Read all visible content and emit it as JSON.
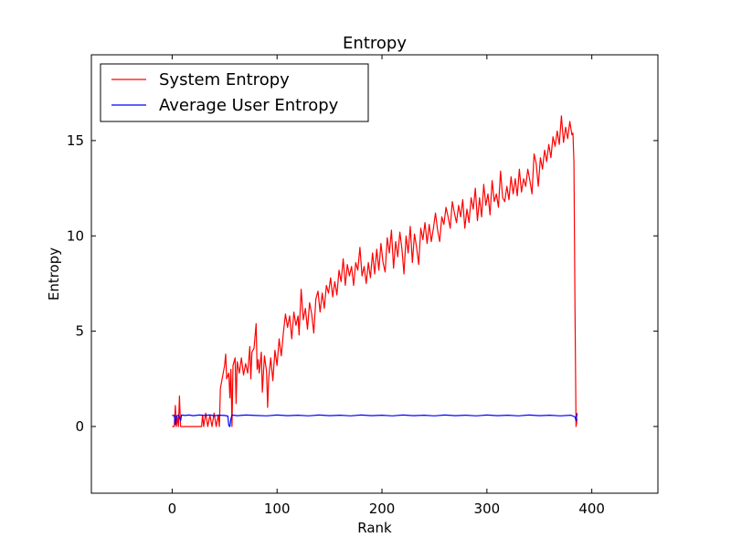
{
  "chart_data": {
    "type": "line",
    "title": "Entropy",
    "xlabel": "Rank",
    "ylabel": "Entropy",
    "xlim": [
      -77,
      463
    ],
    "ylim": [
      -3.5,
      19.5
    ],
    "xticks": [
      0,
      100,
      200,
      300,
      400
    ],
    "yticks": [
      0,
      5,
      10,
      15
    ],
    "grid": false,
    "legend_position": "top-left",
    "series": [
      {
        "name": "System Entropy",
        "color": "#ff0000",
        "points": [
          [
            0,
            0
          ],
          [
            2,
            0
          ],
          [
            3,
            1.1
          ],
          [
            4,
            0
          ],
          [
            5,
            0.5
          ],
          [
            6,
            0
          ],
          [
            7,
            1.6
          ],
          [
            8,
            0
          ],
          [
            10,
            0
          ],
          [
            14,
            0
          ],
          [
            20,
            0
          ],
          [
            25,
            0
          ],
          [
            28,
            0
          ],
          [
            29,
            0.6
          ],
          [
            30,
            0
          ],
          [
            32,
            0.7
          ],
          [
            34,
            0
          ],
          [
            36,
            0.6
          ],
          [
            38,
            0
          ],
          [
            40,
            0.7
          ],
          [
            42,
            0
          ],
          [
            44,
            0.6
          ],
          [
            45,
            0
          ],
          [
            46,
            2.0
          ],
          [
            48,
            2.6
          ],
          [
            50,
            3.2
          ],
          [
            51,
            3.8
          ],
          [
            52,
            2.5
          ],
          [
            54,
            2.8
          ],
          [
            55,
            1.5
          ],
          [
            56,
            3.0
          ],
          [
            57,
            0
          ],
          [
            58,
            3.2
          ],
          [
            60,
            3.6
          ],
          [
            61,
            1.2
          ],
          [
            62,
            3.4
          ],
          [
            64,
            2.8
          ],
          [
            66,
            3.6
          ],
          [
            68,
            2.7
          ],
          [
            70,
            3.3
          ],
          [
            72,
            2.8
          ],
          [
            74,
            4.2
          ],
          [
            75,
            2.5
          ],
          [
            76,
            3.9
          ],
          [
            78,
            4.1
          ],
          [
            80,
            5.4
          ],
          [
            81,
            3.0
          ],
          [
            82,
            3.5
          ],
          [
            83,
            2.8
          ],
          [
            85,
            3.9
          ],
          [
            86,
            1.8
          ],
          [
            88,
            3.7
          ],
          [
            90,
            2.9
          ],
          [
            91,
            1.0
          ],
          [
            92,
            2.5
          ],
          [
            94,
            3.6
          ],
          [
            96,
            2.4
          ],
          [
            98,
            4.0
          ],
          [
            100,
            3.2
          ],
          [
            102,
            4.6
          ],
          [
            104,
            3.7
          ],
          [
            106,
            4.9
          ],
          [
            108,
            5.9
          ],
          [
            110,
            5.2
          ],
          [
            112,
            5.8
          ],
          [
            114,
            4.6
          ],
          [
            116,
            6.0
          ],
          [
            118,
            5.3
          ],
          [
            120,
            5.8
          ],
          [
            121,
            4.8
          ],
          [
            123,
            7.2
          ],
          [
            125,
            5.6
          ],
          [
            127,
            6.2
          ],
          [
            129,
            5.1
          ],
          [
            131,
            6.5
          ],
          [
            133,
            5.9
          ],
          [
            135,
            4.9
          ],
          [
            137,
            6.7
          ],
          [
            139,
            7.1
          ],
          [
            141,
            6.0
          ],
          [
            143,
            7.0
          ],
          [
            145,
            6.2
          ],
          [
            147,
            7.4
          ],
          [
            149,
            7.0
          ],
          [
            151,
            7.8
          ],
          [
            153,
            6.8
          ],
          [
            155,
            7.6
          ],
          [
            157,
            6.9
          ],
          [
            159,
            8.2
          ],
          [
            161,
            7.6
          ],
          [
            163,
            8.8
          ],
          [
            165,
            7.4
          ],
          [
            167,
            8.5
          ],
          [
            169,
            7.9
          ],
          [
            171,
            8.4
          ],
          [
            173,
            7.4
          ],
          [
            175,
            8.6
          ],
          [
            177,
            8.2
          ],
          [
            179,
            9.4
          ],
          [
            181,
            7.9
          ],
          [
            183,
            8.4
          ],
          [
            185,
            7.5
          ],
          [
            187,
            8.6
          ],
          [
            189,
            7.8
          ],
          [
            191,
            9.1
          ],
          [
            193,
            8.0
          ],
          [
            195,
            9.3
          ],
          [
            197,
            8.2
          ],
          [
            199,
            9.6
          ],
          [
            201,
            8.6
          ],
          [
            203,
            8.1
          ],
          [
            205,
            9.9
          ],
          [
            207,
            9.1
          ],
          [
            209,
            10.3
          ],
          [
            211,
            8.3
          ],
          [
            213,
            9.7
          ],
          [
            215,
            8.9
          ],
          [
            217,
            10.2
          ],
          [
            219,
            9.3
          ],
          [
            221,
            8.0
          ],
          [
            223,
            10.0
          ],
          [
            225,
            9.1
          ],
          [
            227,
            10.5
          ],
          [
            229,
            8.6
          ],
          [
            231,
            10.1
          ],
          [
            233,
            9.4
          ],
          [
            235,
            8.5
          ],
          [
            237,
            10.4
          ],
          [
            239,
            9.8
          ],
          [
            241,
            10.7
          ],
          [
            243,
            9.6
          ],
          [
            245,
            10.6
          ],
          [
            247,
            9.7
          ],
          [
            249,
            10.4
          ],
          [
            251,
            11.2
          ],
          [
            253,
            10.3
          ],
          [
            255,
            9.7
          ],
          [
            257,
            11.0
          ],
          [
            259,
            10.6
          ],
          [
            261,
            11.5
          ],
          [
            263,
            11.0
          ],
          [
            265,
            10.4
          ],
          [
            267,
            11.8
          ],
          [
            269,
            11.2
          ],
          [
            271,
            10.7
          ],
          [
            273,
            11.6
          ],
          [
            275,
            11.0
          ],
          [
            277,
            11.9
          ],
          [
            279,
            10.4
          ],
          [
            281,
            11.4
          ],
          [
            283,
            10.7
          ],
          [
            285,
            12.0
          ],
          [
            287,
            11.4
          ],
          [
            289,
            12.5
          ],
          [
            291,
            10.8
          ],
          [
            293,
            12.0
          ],
          [
            295,
            11.0
          ],
          [
            297,
            12.7
          ],
          [
            299,
            11.6
          ],
          [
            301,
            12.2
          ],
          [
            303,
            11.1
          ],
          [
            305,
            12.9
          ],
          [
            307,
            11.8
          ],
          [
            309,
            12.2
          ],
          [
            311,
            11.5
          ],
          [
            313,
            13.4
          ],
          [
            315,
            12.0
          ],
          [
            317,
            11.8
          ],
          [
            319,
            12.6
          ],
          [
            321,
            11.9
          ],
          [
            323,
            13.1
          ],
          [
            325,
            12.2
          ],
          [
            327,
            13.0
          ],
          [
            329,
            12.1
          ],
          [
            331,
            13.5
          ],
          [
            333,
            12.3
          ],
          [
            335,
            13.0
          ],
          [
            337,
            12.6
          ],
          [
            339,
            13.5
          ],
          [
            341,
            12.9
          ],
          [
            343,
            12.2
          ],
          [
            345,
            14.3
          ],
          [
            347,
            13.8
          ],
          [
            349,
            12.6
          ],
          [
            351,
            14.1
          ],
          [
            353,
            13.5
          ],
          [
            355,
            14.5
          ],
          [
            357,
            13.9
          ],
          [
            359,
            14.8
          ],
          [
            361,
            14.1
          ],
          [
            363,
            15.2
          ],
          [
            365,
            14.7
          ],
          [
            367,
            15.5
          ],
          [
            369,
            14.8
          ],
          [
            371,
            16.3
          ],
          [
            373,
            14.9
          ],
          [
            375,
            15.7
          ],
          [
            377,
            15.1
          ],
          [
            379,
            16.0
          ],
          [
            381,
            15.3
          ],
          [
            382,
            15.4
          ],
          [
            383,
            13.9
          ],
          [
            384,
            6.0
          ],
          [
            385,
            0
          ],
          [
            386,
            0.4
          ]
        ]
      },
      {
        "name": "Average User Entropy",
        "color": "#0000ff",
        "points": [
          [
            0,
            0.58
          ],
          [
            2,
            0.58
          ],
          [
            3,
            0.1
          ],
          [
            4,
            0.55
          ],
          [
            6,
            0.6
          ],
          [
            8,
            0.3
          ],
          [
            9,
            0.6
          ],
          [
            12,
            0.58
          ],
          [
            16,
            0.6
          ],
          [
            20,
            0.57
          ],
          [
            26,
            0.6
          ],
          [
            30,
            0.58
          ],
          [
            36,
            0.6
          ],
          [
            40,
            0.57
          ],
          [
            46,
            0.59
          ],
          [
            50,
            0.58
          ],
          [
            53,
            0.55
          ],
          [
            54,
            0.05
          ],
          [
            55,
            0.0
          ],
          [
            56,
            0.4
          ],
          [
            57,
            0.6
          ],
          [
            62,
            0.57
          ],
          [
            70,
            0.6
          ],
          [
            80,
            0.58
          ],
          [
            90,
            0.56
          ],
          [
            100,
            0.6
          ],
          [
            110,
            0.57
          ],
          [
            120,
            0.59
          ],
          [
            130,
            0.56
          ],
          [
            140,
            0.6
          ],
          [
            150,
            0.57
          ],
          [
            160,
            0.59
          ],
          [
            170,
            0.56
          ],
          [
            180,
            0.6
          ],
          [
            190,
            0.57
          ],
          [
            200,
            0.59
          ],
          [
            210,
            0.56
          ],
          [
            220,
            0.6
          ],
          [
            230,
            0.57
          ],
          [
            240,
            0.59
          ],
          [
            250,
            0.56
          ],
          [
            260,
            0.6
          ],
          [
            270,
            0.57
          ],
          [
            280,
            0.59
          ],
          [
            290,
            0.56
          ],
          [
            300,
            0.6
          ],
          [
            310,
            0.57
          ],
          [
            320,
            0.59
          ],
          [
            330,
            0.56
          ],
          [
            340,
            0.6
          ],
          [
            350,
            0.57
          ],
          [
            360,
            0.59
          ],
          [
            370,
            0.56
          ],
          [
            380,
            0.59
          ],
          [
            384,
            0.5
          ],
          [
            385,
            0.3
          ],
          [
            386,
            0.7
          ]
        ]
      }
    ]
  }
}
